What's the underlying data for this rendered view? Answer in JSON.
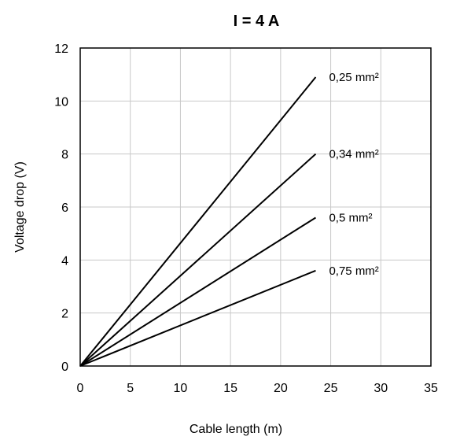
{
  "chart_data": {
    "type": "line",
    "title": "I = 4 A",
    "xlabel": "Cable length (m)",
    "ylabel": "Voltage drop (V)",
    "xlim": [
      0,
      35
    ],
    "ylim": [
      0,
      12
    ],
    "xticks": [
      0,
      5,
      10,
      15,
      20,
      25,
      30,
      35
    ],
    "yticks": [
      0,
      2,
      4,
      6,
      8,
      10,
      12
    ],
    "grid": true,
    "series": [
      {
        "name": "0,25 mm²",
        "x": [
          0,
          23.5
        ],
        "y": [
          0,
          10.9
        ]
      },
      {
        "name": "0,34 mm²",
        "x": [
          0,
          23.5
        ],
        "y": [
          0,
          8.0
        ]
      },
      {
        "name": "0,5 mm²",
        "x": [
          0,
          23.5
        ],
        "y": [
          0,
          5.6
        ]
      },
      {
        "name": "0,75 mm²",
        "x": [
          0,
          23.5
        ],
        "y": [
          0,
          3.6
        ]
      }
    ]
  }
}
